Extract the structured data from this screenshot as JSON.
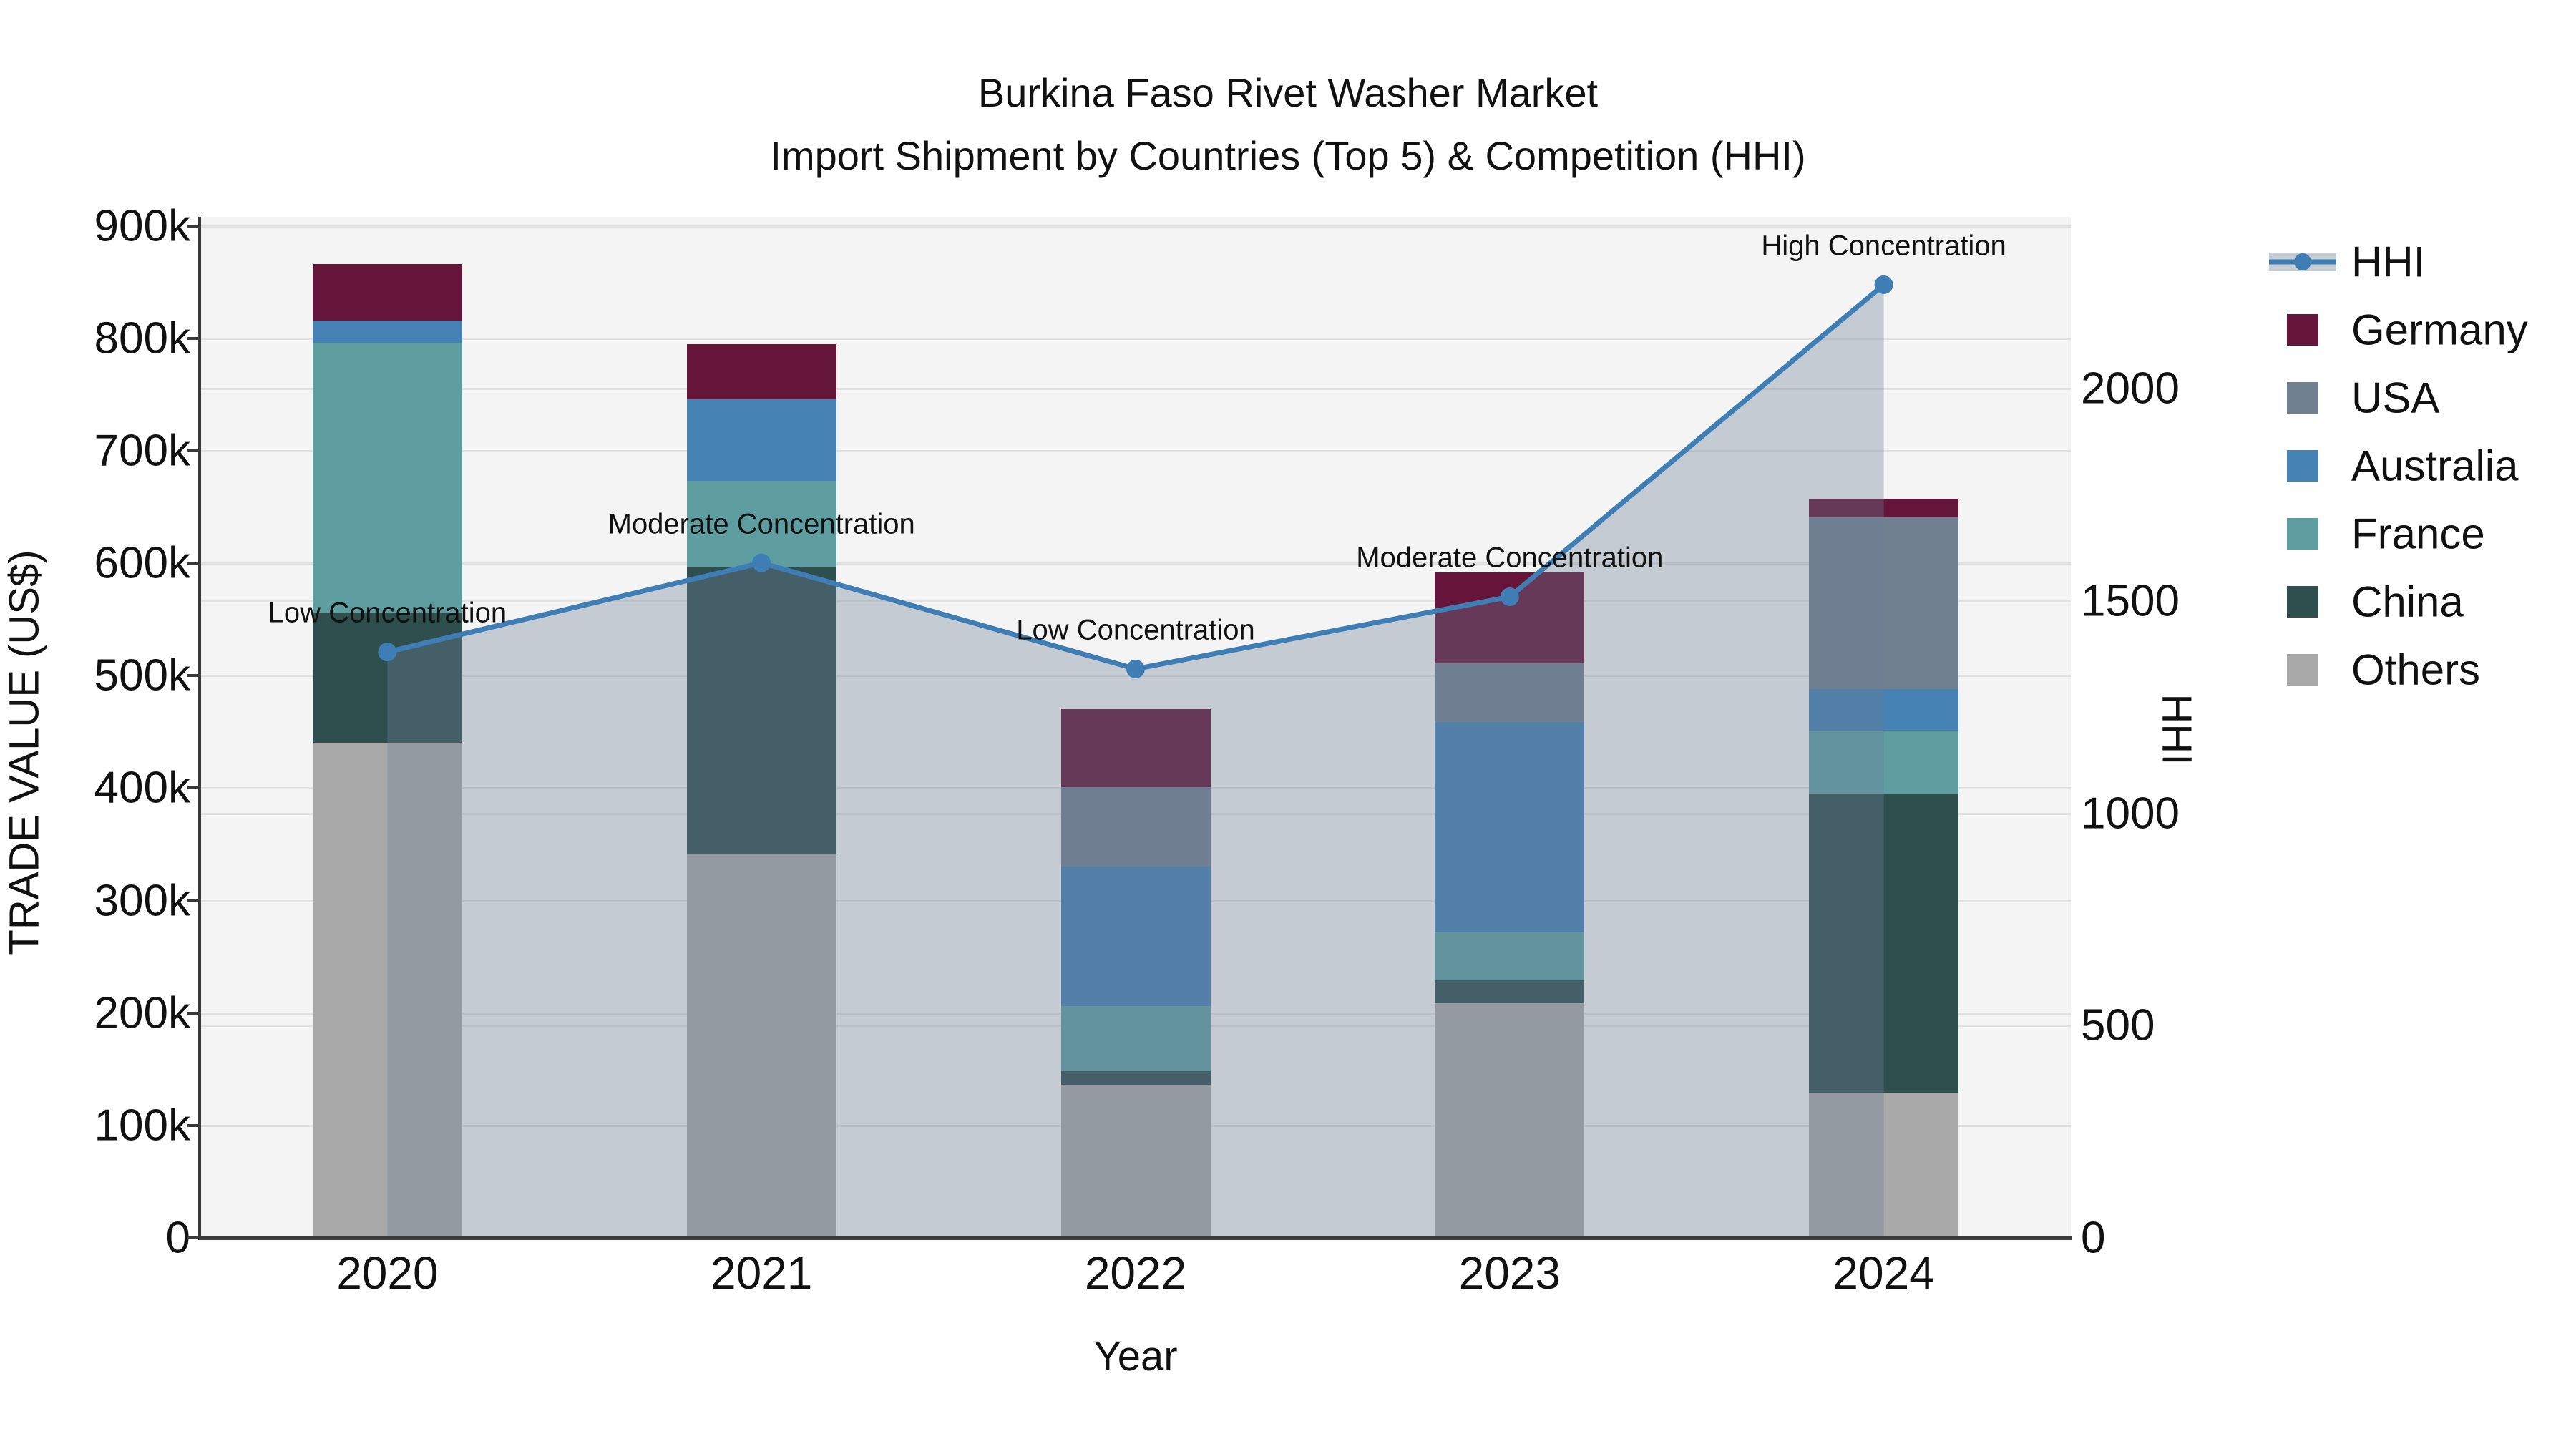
{
  "title": {
    "line1": "Burkina Faso Rivet Washer Market",
    "line2": "Import Shipment by Countries (Top 5) & Competition (HHI)"
  },
  "axes": {
    "y_left": {
      "title": "TRADE VALUE (US$)",
      "ticks": [
        {
          "label": "0",
          "value": 0
        },
        {
          "label": "100k",
          "value": 100000
        },
        {
          "label": "200k",
          "value": 200000
        },
        {
          "label": "300k",
          "value": 300000
        },
        {
          "label": "400k",
          "value": 400000
        },
        {
          "label": "500k",
          "value": 500000
        },
        {
          "label": "600k",
          "value": 600000
        },
        {
          "label": "700k",
          "value": 700000
        },
        {
          "label": "800k",
          "value": 800000
        },
        {
          "label": "900k",
          "value": 900000
        }
      ],
      "max": 908000
    },
    "y_right": {
      "title": "HHI",
      "ticks": [
        {
          "label": "0",
          "value": 0
        },
        {
          "label": "500",
          "value": 500
        },
        {
          "label": "1000",
          "value": 1000
        },
        {
          "label": "1500",
          "value": 1500
        },
        {
          "label": "2000",
          "value": 2000
        }
      ],
      "max": 2405
    },
    "x": {
      "title": "Year",
      "categories": [
        "2020",
        "2021",
        "2022",
        "2023",
        "2024"
      ]
    }
  },
  "legend": {
    "items": [
      {
        "label": "HHI",
        "type": "line"
      },
      {
        "label": "Germany",
        "type": "patch",
        "color_key": "germany"
      },
      {
        "label": "USA",
        "type": "patch",
        "color_key": "usa"
      },
      {
        "label": "Australia",
        "type": "patch",
        "color_key": "australia"
      },
      {
        "label": "France",
        "type": "patch",
        "color_key": "france"
      },
      {
        "label": "China",
        "type": "patch",
        "color_key": "china"
      },
      {
        "label": "Others",
        "type": "patch",
        "color_key": "others"
      }
    ]
  },
  "colors": {
    "germany": "#65143a",
    "usa": "#708090",
    "australia": "#4682b4",
    "france": "#5f9ea0",
    "china": "#2f4f4f",
    "others": "#a9a9a9",
    "hhi_line": "#3f7eb5",
    "area_fill": "rgba(110,127,148,0.35)",
    "plot_bg": "#f4f4f4",
    "grid": "#e2e2e2",
    "spine": "#3a3a3a",
    "text": "#111111"
  },
  "chart_data": {
    "type": "bar+line",
    "categories": [
      "2020",
      "2021",
      "2022",
      "2023",
      "2024"
    ],
    "bar_value_unit": "US$",
    "stack_order_bottom_to_top": [
      "Others",
      "China",
      "France",
      "Australia",
      "USA",
      "Germany"
    ],
    "series": [
      {
        "name": "Germany",
        "color_key": "germany",
        "values": [
          50000,
          49000,
          69000,
          81000,
          16000
        ]
      },
      {
        "name": "USA",
        "color_key": "usa",
        "values": [
          0,
          0,
          71000,
          52000,
          153000
        ]
      },
      {
        "name": "Australia",
        "color_key": "australia",
        "values": [
          20000,
          73000,
          124000,
          187000,
          37000
        ]
      },
      {
        "name": "France",
        "color_key": "france",
        "values": [
          240000,
          76000,
          58000,
          43000,
          56000
        ]
      },
      {
        "name": "China",
        "color_key": "china",
        "values": [
          116000,
          255000,
          12000,
          20000,
          266000
        ]
      },
      {
        "name": "Others",
        "color_key": "others",
        "values": [
          440000,
          342000,
          136000,
          209000,
          129000
        ]
      }
    ],
    "bar_totals": [
      866000,
      795000,
      470000,
      592000,
      657000
    ],
    "line": {
      "name": "HHI",
      "axis": "right",
      "values": [
        1380,
        1590,
        1340,
        1510,
        2245
      ],
      "area_fill": true
    },
    "annotations": [
      {
        "category": "2020",
        "text": "Low Concentration"
      },
      {
        "category": "2021",
        "text": "Moderate Concentration"
      },
      {
        "category": "2022",
        "text": "Low Concentration"
      },
      {
        "category": "2023",
        "text": "Moderate Concentration"
      },
      {
        "category": "2024",
        "text": "High Concentration"
      }
    ],
    "title": "Burkina Faso Rivet Washer Market — Import Shipment by Countries (Top 5) & Competition (HHI)",
    "xlabel": "Year",
    "ylabel_left": "TRADE VALUE (US$)",
    "ylabel_right": "HHI",
    "ylim_left": [
      0,
      908000
    ],
    "ylim_right": [
      0,
      2405
    ],
    "grid": true,
    "legend_position": "right"
  }
}
